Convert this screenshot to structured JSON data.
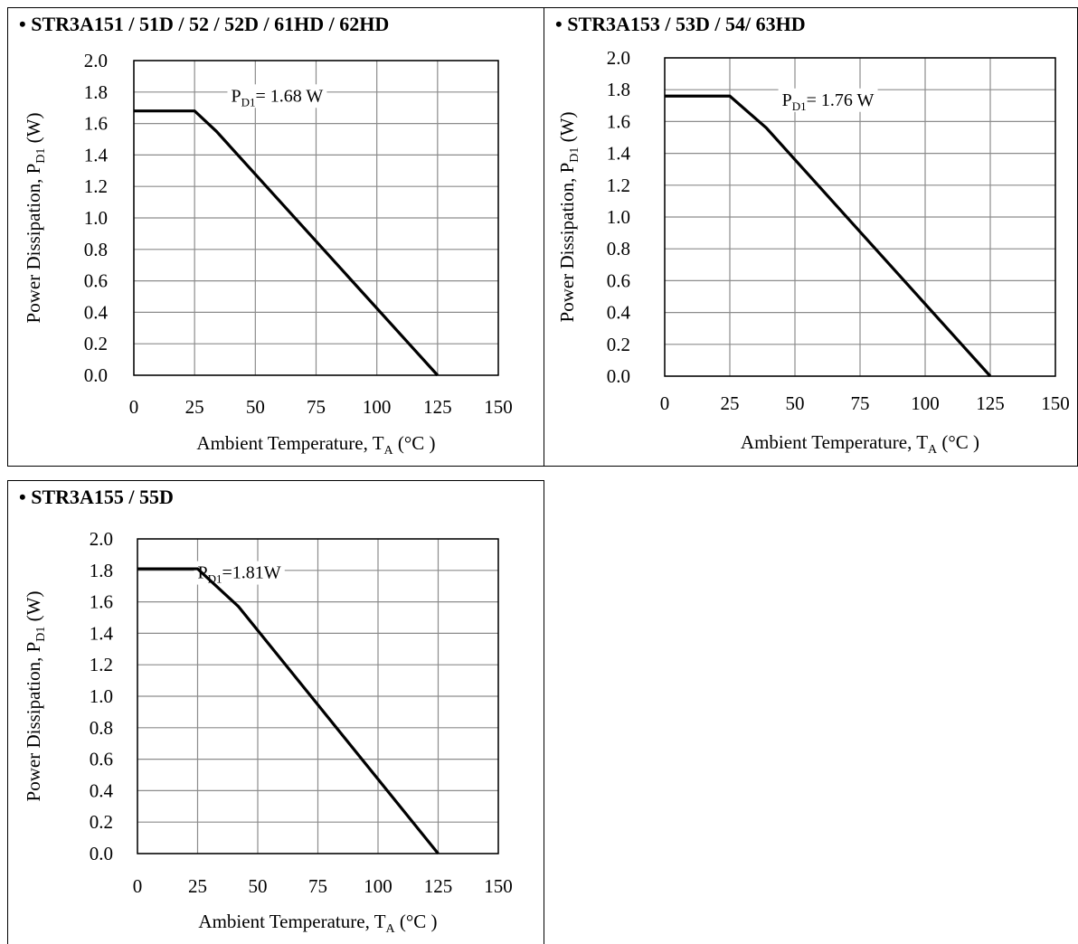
{
  "chart_data": [
    {
      "type": "line",
      "title": "• STR3A151 / 51D / 52 / 52D / 61HD / 62HD",
      "xlabel": "Ambient Temperature, T",
      "xlabel_sub": "A",
      "xlabel_unit": " (°C )",
      "ylabel": "Power Dissipation, P",
      "ylabel_sub": "D1",
      "ylabel_unit": " (W)",
      "xlim": [
        0,
        150
      ],
      "ylim": [
        0.0,
        2.0
      ],
      "x_ticks": [
        "0",
        "25",
        "50",
        "75",
        "100",
        "125",
        "150"
      ],
      "y_ticks": [
        "0.0",
        "0.2",
        "0.4",
        "0.6",
        "0.8",
        "1.0",
        "1.2",
        "1.4",
        "1.6",
        "1.8",
        "2.0"
      ],
      "grid": true,
      "series": [
        {
          "x": [
            0,
            25,
            34,
            125
          ],
          "y": [
            1.68,
            1.68,
            1.55,
            0.0
          ]
        }
      ],
      "annotation": {
        "prefix": "P",
        "sub": "D1",
        "suffix": "= 1.68 W"
      }
    },
    {
      "type": "line",
      "title": "• STR3A153 / 53D / 54/ 63HD",
      "xlabel": "Ambient Temperature, T",
      "xlabel_sub": "A",
      "xlabel_unit": " (°C )",
      "ylabel": "Power Dissipation, P",
      "ylabel_sub": "D1",
      "ylabel_unit": " (W)",
      "xlim": [
        0,
        150
      ],
      "ylim": [
        0.0,
        2.0
      ],
      "x_ticks": [
        "0",
        "25",
        "50",
        "75",
        "100",
        "125",
        "150"
      ],
      "y_ticks": [
        "0.0",
        "0.2",
        "0.4",
        "0.6",
        "0.8",
        "1.0",
        "1.2",
        "1.4",
        "1.6",
        "1.8",
        "2.0"
      ],
      "grid": true,
      "series": [
        {
          "x": [
            0,
            25,
            39,
            125
          ],
          "y": [
            1.76,
            1.76,
            1.56,
            0.0
          ]
        }
      ],
      "annotation": {
        "prefix": "P",
        "sub": "D1",
        "suffix": "= 1.76 W"
      }
    },
    {
      "type": "line",
      "title": "• STR3A155 / 55D",
      "xlabel": "Ambient Temperature, T",
      "xlabel_sub": "A",
      "xlabel_unit": " (°C )",
      "ylabel": "Power Dissipation, P",
      "ylabel_sub": "D1",
      "ylabel_unit": " (W)",
      "xlim": [
        0,
        150
      ],
      "ylim": [
        0.0,
        2.0
      ],
      "x_ticks": [
        "0",
        "25",
        "50",
        "75",
        "100",
        "125",
        "150"
      ],
      "y_ticks": [
        "0.0",
        "0.2",
        "0.4",
        "0.6",
        "0.8",
        "1.0",
        "1.2",
        "1.4",
        "1.6",
        "1.8",
        "2.0"
      ],
      "grid": true,
      "series": [
        {
          "x": [
            0,
            25,
            42,
            125
          ],
          "y": [
            1.81,
            1.81,
            1.57,
            0.0
          ]
        }
      ],
      "annotation": {
        "prefix": "P",
        "sub": "D1",
        "suffix": "=1.81W"
      }
    }
  ]
}
